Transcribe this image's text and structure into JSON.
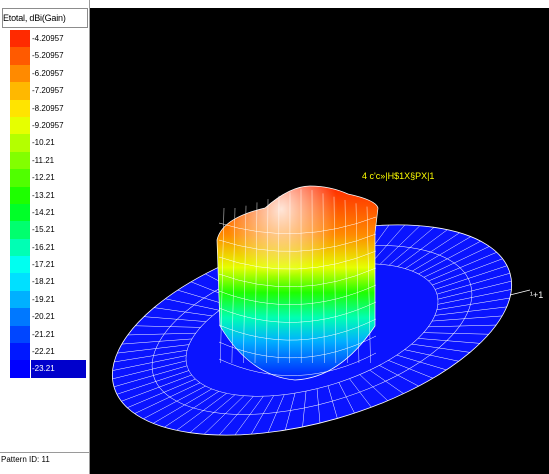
{
  "legend": {
    "header": "Etotal, dBi(Gain)",
    "entries": [
      {
        "label": "-4.20957",
        "color": "#ff2a00"
      },
      {
        "label": "-5.20957",
        "color": "#ff5a00"
      },
      {
        "label": "-6.20957",
        "color": "#ff8a00"
      },
      {
        "label": "-7.20957",
        "color": "#ffb800"
      },
      {
        "label": "-8.20957",
        "color": "#ffe400"
      },
      {
        "label": "-9.20957",
        "color": "#e6ff00"
      },
      {
        "label": "-10.21",
        "color": "#b4ff00"
      },
      {
        "label": "-11.21",
        "color": "#82ff00"
      },
      {
        "label": "-12.21",
        "color": "#50ff00"
      },
      {
        "label": "-13.21",
        "color": "#1eff00"
      },
      {
        "label": "-14.21",
        "color": "#00ff28"
      },
      {
        "label": "-15.21",
        "color": "#00ff6e"
      },
      {
        "label": "-16.21",
        "color": "#00ffb4"
      },
      {
        "label": "-17.21",
        "color": "#00fff0"
      },
      {
        "label": "-18.21",
        "color": "#00e0ff"
      },
      {
        "label": "-19.21",
        "color": "#00b0ff"
      },
      {
        "label": "-20.21",
        "color": "#0078ff"
      },
      {
        "label": "-21.21",
        "color": "#0046ff"
      },
      {
        "label": "-22.21",
        "color": "#0018ff"
      },
      {
        "label": "-23.21",
        "color": "#0000ff"
      }
    ],
    "selected_index": 19
  },
  "footer": {
    "pattern_label": "Pattern ID: 11"
  },
  "viewport": {
    "peak_annotation": "4 c'c»|H$1X§PX|1",
    "axis_annotation": "¹+1"
  }
}
